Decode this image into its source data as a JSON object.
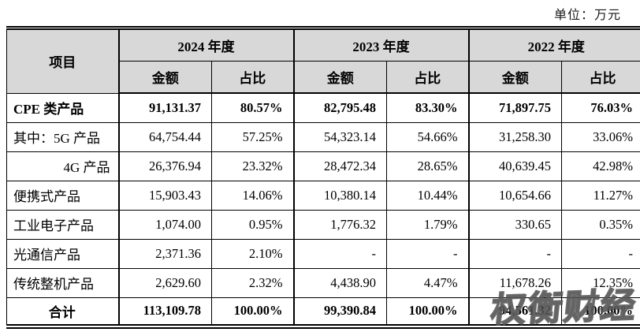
{
  "unit_label": "单位：万元",
  "watermark": "权衡财经",
  "colors": {
    "header_bg": "#d8d8d8",
    "border": "#000000",
    "text": "#000000",
    "watermark_stroke": "#4b4b4b"
  },
  "table": {
    "item_header": "项目",
    "year_groups": [
      {
        "label": "2024 年度",
        "amount_header": "金额",
        "ratio_header": "占比"
      },
      {
        "label": "2023 年度",
        "amount_header": "金额",
        "ratio_header": "占比"
      },
      {
        "label": "2022 年度",
        "amount_header": "金额",
        "ratio_header": "占比"
      }
    ],
    "rows": [
      {
        "label": "CPE 类产品",
        "values": [
          "91,131.37",
          "80.57%",
          "82,795.48",
          "83.30%",
          "71,897.75",
          "76.03%"
        ]
      },
      {
        "label": "其中：5G 产品",
        "values": [
          "64,754.44",
          "57.25%",
          "54,323.14",
          "54.66%",
          "31,258.30",
          "33.06%"
        ]
      },
      {
        "label": "4G 产品",
        "values": [
          "26,376.94",
          "23.32%",
          "28,472.34",
          "28.65%",
          "40,639.45",
          "42.98%"
        ]
      },
      {
        "label": "便携式产品",
        "values": [
          "15,903.43",
          "14.06%",
          "10,380.14",
          "10.44%",
          "10,654.66",
          "11.27%"
        ]
      },
      {
        "label": "工业电子产品",
        "values": [
          "1,074.00",
          "0.95%",
          "1,776.32",
          "1.79%",
          "330.65",
          "0.35%"
        ]
      },
      {
        "label": "光通信产品",
        "values": [
          "2,371.36",
          "2.10%",
          "-",
          "-",
          "-",
          "-"
        ]
      },
      {
        "label": "传统整机产品",
        "values": [
          "2,629.60",
          "2.32%",
          "4,438.90",
          "4.47%",
          "11,678.26",
          "12.35%"
        ]
      },
      {
        "label": "合计",
        "values": [
          "113,109.78",
          "100.00%",
          "99,390.84",
          "100.00%",
          "94,561.32",
          "100.00%"
        ]
      }
    ]
  }
}
